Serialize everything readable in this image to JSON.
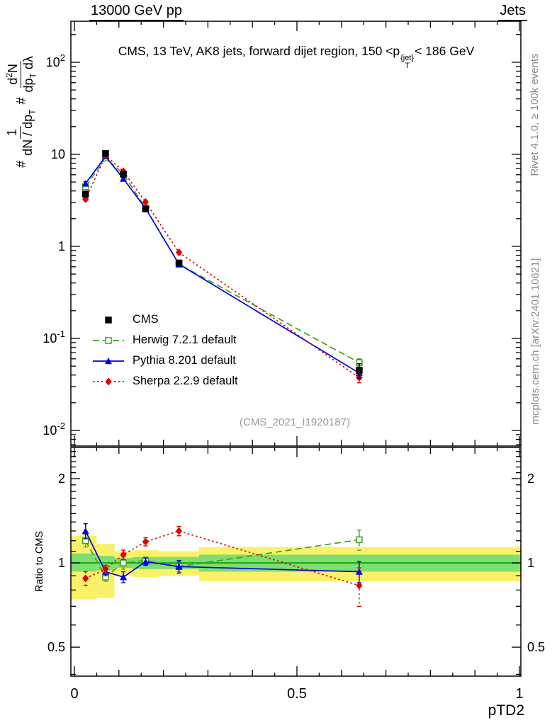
{
  "header": {
    "left": "13000 GeV pp",
    "right": "Jets"
  },
  "title": {
    "pre": "CMS, 13 TeV, AK8 jets, forward dijet region, 150 <p",
    "sup": "{jet}",
    "sub": "T",
    "post": "< 186 GeV"
  },
  "y_axis_label": {
    "hash": "#",
    "frac1": {
      "num": "1",
      "den_pre": "dN / dp",
      "den_sub": "T"
    },
    "frac2": {
      "num_pre": "d",
      "num_sup": "2",
      "num_post": "N",
      "den_pre": "dp",
      "den_sub": "T",
      "den_post": " dλ"
    }
  },
  "ratio_y_label": "Ratio to CMS",
  "x_axis_label": "pTD2",
  "watermark": "(CMS_2021_I1920187)",
  "side_notes": {
    "top_right": "Rivet 4.1.0, ≥ 100k events",
    "bottom_right": "mcplots.cern.ch [arXiv:2401.10621]"
  },
  "legend": {
    "items": [
      {
        "label": "CMS"
      },
      {
        "label": "Herwig 7.2.1 default"
      },
      {
        "label": "Pythia 8.201 default"
      },
      {
        "label": "Sherpa 2.2.9 default"
      }
    ]
  },
  "chart_data": {
    "type": "line",
    "title": "CMS, 13 TeV, AK8 jets, forward dijet region, 150 <pT{jet}< 186 GeV",
    "xlabel": "pTD2",
    "ylabel": "# 1/(dN/dpT) # d2N/(dpT dlambda)",
    "x_range": [
      -0.008,
      1.003
    ],
    "x_ticks": [
      {
        "v": 0,
        "label": "0"
      },
      {
        "v": 0.5,
        "label": "0.5"
      },
      {
        "v": 1,
        "label": "1"
      }
    ],
    "x": [
      0.025,
      0.07,
      0.11,
      0.16,
      0.235,
      0.64
    ],
    "main_panel": {
      "y_scale": "log",
      "y_lim": [
        0.00677,
        279
      ],
      "y_tick_labels": [
        {
          "v": 0.01,
          "base": "10",
          "exp": "-2"
        },
        {
          "v": 0.1,
          "base": "10",
          "exp": "-1"
        },
        {
          "v": 1,
          "base": "1",
          "exp": ""
        },
        {
          "v": 10,
          "base": "10",
          "exp": ""
        },
        {
          "v": 100,
          "base": "10",
          "exp": "2"
        }
      ],
      "series": [
        {
          "name": "CMS",
          "color": "#000000",
          "marker": "square",
          "fill": "filled",
          "line": "none",
          "values": [
            3.7,
            10.2,
            6.1,
            2.55,
            0.66,
            0.045
          ],
          "yerr_rel": [
            0.06,
            0.04,
            0.04,
            0.04,
            0.06,
            0.18
          ]
        },
        {
          "name": "Herwig 7.2.1 default",
          "color": "#3fa01e",
          "marker": "square",
          "fill": "open",
          "line": "dashed",
          "values": [
            4.44,
            9.1,
            6.1,
            2.6,
            0.64,
            0.0545
          ],
          "yerr_rel": [
            0.04,
            0.03,
            0.03,
            0.03,
            0.04,
            0.1
          ]
        },
        {
          "name": "Pythia 8.201 default",
          "color": "#0000dd",
          "marker": "triangle",
          "fill": "filled",
          "line": "solid",
          "values": [
            4.81,
            9.5,
            5.43,
            2.58,
            0.64,
            0.042
          ],
          "yerr_rel": [
            0.05,
            0.03,
            0.03,
            0.03,
            0.04,
            0.09
          ]
        },
        {
          "name": "Sherpa 2.2.9 default",
          "color": "#e10000",
          "marker": "diamond",
          "fill": "filled",
          "line": "dotted",
          "values": [
            3.26,
            9.7,
            6.53,
            3.03,
            0.86,
            0.0374
          ],
          "yerr_rel": [
            0.04,
            0.03,
            0.03,
            0.03,
            0.04,
            0.12
          ]
        }
      ]
    },
    "ratio_panel": {
      "y_scale": "log",
      "y_lim": [
        0.394,
        2.584
      ],
      "y_ticks": [
        {
          "v": 0.5,
          "label": "0.5"
        },
        {
          "v": 1,
          "label": "1"
        },
        {
          "v": 2,
          "label": "2"
        }
      ],
      "band_colors": {
        "outer": "#fbf169",
        "inner": "#7ede6f",
        "center_line": "#009c00"
      },
      "bands_outer": [
        {
          "x0": 0.0,
          "x1": 0.05,
          "lo": 0.74,
          "hi": 1.25
        },
        {
          "x0": 0.05,
          "x1": 0.09,
          "lo": 0.75,
          "hi": 1.17
        },
        {
          "x0": 0.09,
          "x1": 0.13,
          "lo": 0.9,
          "hi": 1.1
        },
        {
          "x0": 0.13,
          "x1": 0.19,
          "lo": 0.89,
          "hi": 1.11
        },
        {
          "x0": 0.19,
          "x1": 0.28,
          "lo": 0.9,
          "hi": 1.1
        },
        {
          "x0": 0.28,
          "x1": 1.0,
          "lo": 0.86,
          "hi": 1.14
        }
      ],
      "bands_inner": [
        {
          "x0": 0.0,
          "x1": 0.05,
          "lo": 0.93,
          "hi": 1.08
        },
        {
          "x0": 0.05,
          "x1": 0.09,
          "lo": 0.94,
          "hi": 1.06
        },
        {
          "x0": 0.09,
          "x1": 0.13,
          "lo": 0.96,
          "hi": 1.04
        },
        {
          "x0": 0.13,
          "x1": 0.19,
          "lo": 0.95,
          "hi": 1.05
        },
        {
          "x0": 0.19,
          "x1": 0.28,
          "lo": 0.95,
          "hi": 1.05
        },
        {
          "x0": 0.28,
          "x1": 1.0,
          "lo": 0.93,
          "hi": 1.07
        }
      ],
      "series": [
        {
          "name": "Herwig 7.2.1 default",
          "color": "#3fa01e",
          "marker": "square",
          "fill": "open",
          "line": "dashed",
          "values": [
            1.2,
            0.89,
            1.0,
            1.02,
            0.97,
            1.21
          ],
          "yerr": [
            0.06,
            0.03,
            0.05,
            0.03,
            0.04,
            0.1
          ]
        },
        {
          "name": "Pythia 8.201 default",
          "color": "#0000dd",
          "marker": "triangle",
          "fill": "filled",
          "line": "solid",
          "values": [
            1.3,
            0.93,
            0.89,
            1.01,
            0.97,
            0.93
          ],
          "yerr": [
            0.08,
            0.03,
            0.04,
            0.03,
            0.05,
            0.08
          ]
        },
        {
          "name": "Sherpa 2.2.9 default",
          "color": "#e10000",
          "marker": "diamond",
          "fill": "filled",
          "line": "dotted",
          "values": [
            0.88,
            0.95,
            1.07,
            1.19,
            1.3,
            0.83
          ],
          "yerr": [
            0.05,
            0.03,
            0.04,
            0.04,
            0.05,
            0.13
          ]
        }
      ]
    }
  }
}
